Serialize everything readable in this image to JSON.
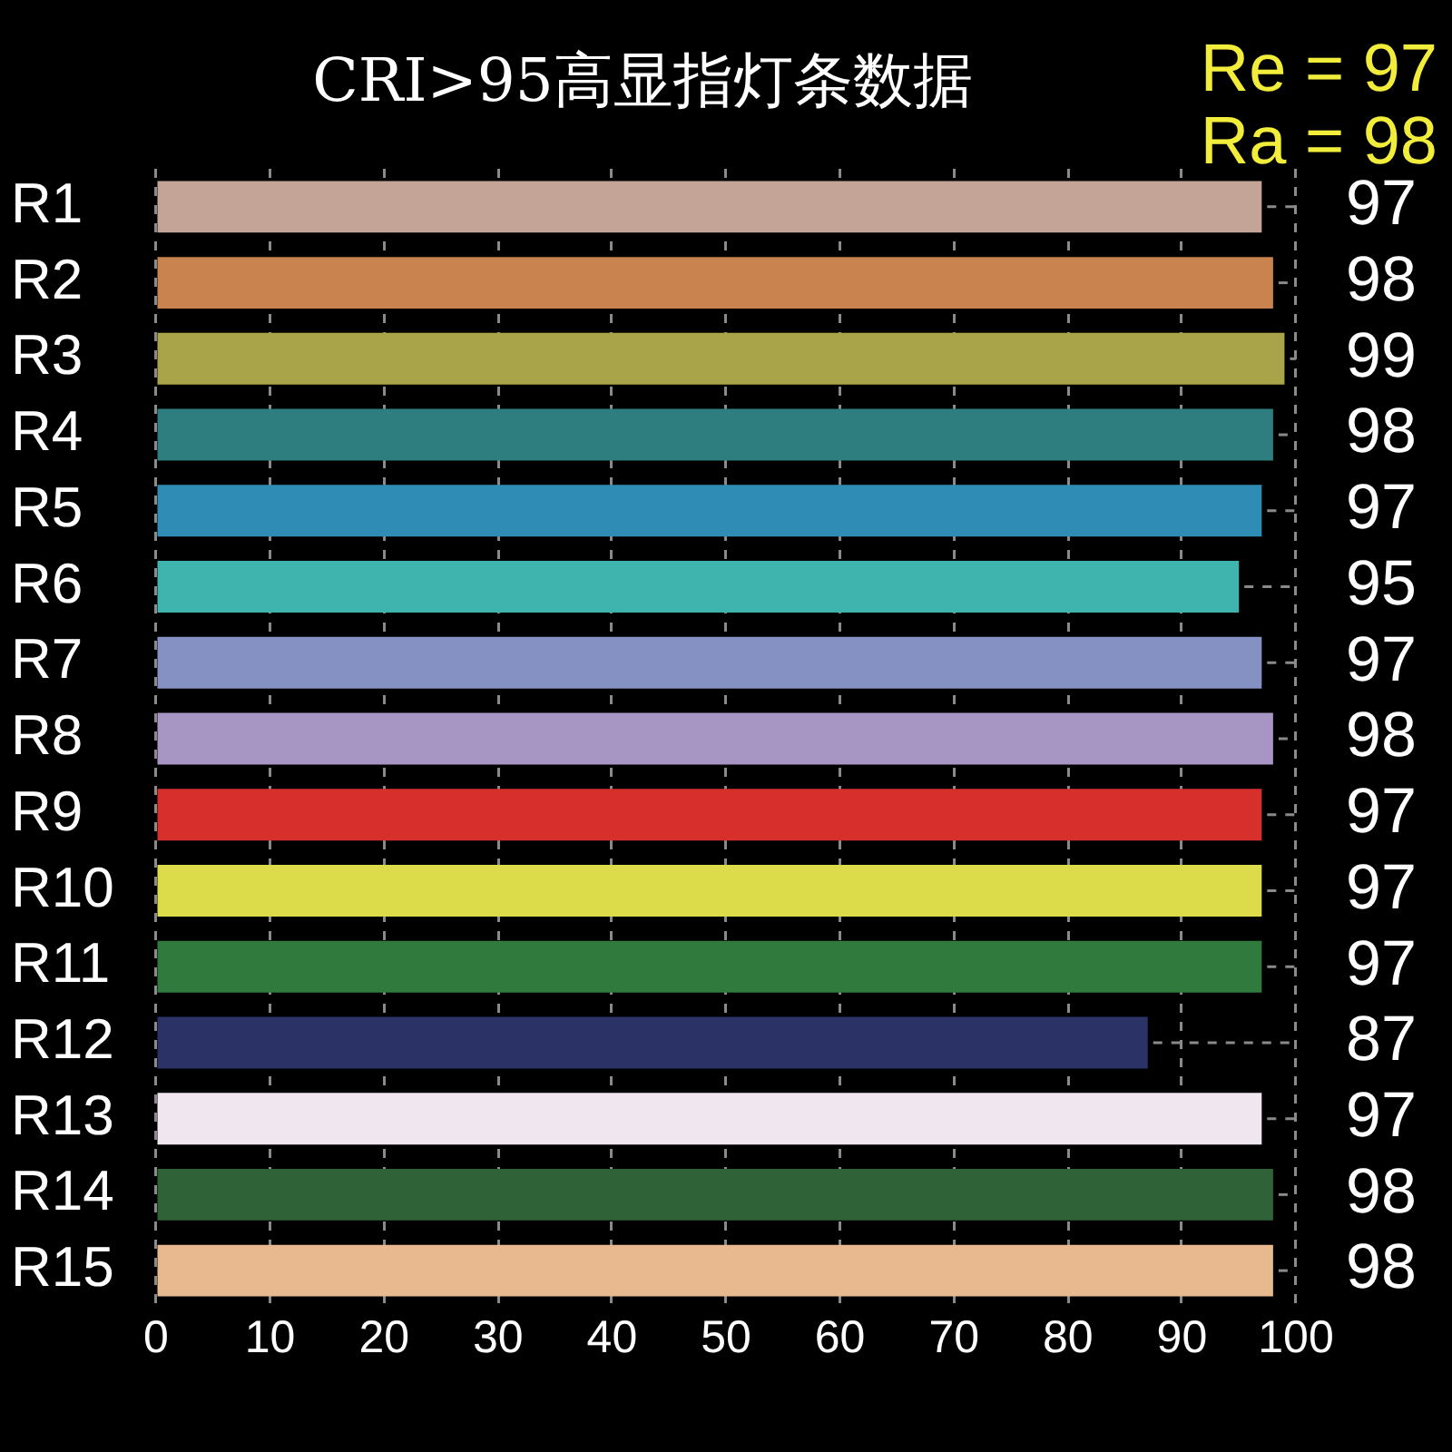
{
  "chart_data": {
    "type": "bar",
    "orientation": "horizontal",
    "title": "CRI>95高显指灯条数据",
    "annotations": [
      "Re = 97",
      "Ra = 98"
    ],
    "categories": [
      "R1",
      "R2",
      "R3",
      "R4",
      "R5",
      "R6",
      "R7",
      "R8",
      "R9",
      "R10",
      "R11",
      "R12",
      "R13",
      "R14",
      "R15"
    ],
    "values": [
      97,
      98,
      99,
      98,
      97,
      95,
      97,
      98,
      97,
      97,
      97,
      87,
      97,
      98,
      98
    ],
    "colors": [
      "#c4a496",
      "#c8834f",
      "#a9a44a",
      "#2f7e7f",
      "#2f8db5",
      "#3fb3ad",
      "#8591c3",
      "#a795c3",
      "#d7302c",
      "#dcdc4a",
      "#2f7a3c",
      "#2b3366",
      "#f0e6f0",
      "#2f6337",
      "#e8b88e"
    ],
    "xlim": [
      0,
      100
    ],
    "xticks": [
      0,
      10,
      20,
      30,
      40,
      50,
      60,
      70,
      80,
      90,
      100
    ],
    "grid": "x",
    "data_labels": true
  }
}
